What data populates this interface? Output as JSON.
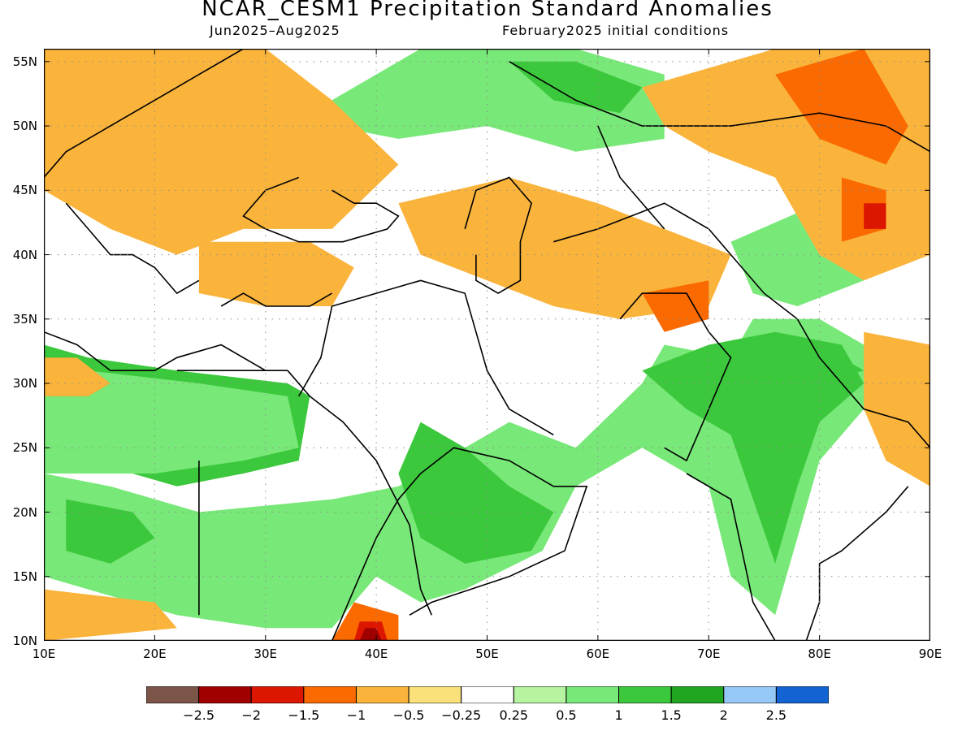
{
  "title": "NCAR_CESM1 Precipitation Standard Anomalies",
  "subtitle_left": "Jun2025–Aug2025",
  "subtitle_right": "February2025 initial conditions",
  "lat_labels": [
    "55N",
    "50N",
    "45N",
    "40N",
    "35N",
    "30N",
    "25N",
    "20N",
    "15N",
    "10N"
  ],
  "lon_labels": [
    "10E",
    "20E",
    "30E",
    "40E",
    "50E",
    "60E",
    "70E",
    "80E",
    "90E"
  ],
  "map": {
    "lon_range": [
      10,
      90
    ],
    "lat_range": [
      10,
      56
    ],
    "grid_lon": [
      20,
      30,
      40,
      50,
      60,
      70,
      80
    ],
    "grid_lat": [
      15,
      20,
      25,
      30,
      35,
      40,
      45,
      50,
      55
    ],
    "anomaly_regions": [
      {
        "level": 1,
        "points": [
          [
            10,
            33
          ],
          [
            14,
            32
          ],
          [
            22,
            31
          ],
          [
            32,
            30
          ],
          [
            34,
            29
          ],
          [
            33,
            24
          ],
          [
            28,
            23
          ],
          [
            22,
            22
          ],
          [
            18,
            23
          ],
          [
            10,
            24
          ]
        ]
      },
      {
        "level": 0.5,
        "points": [
          [
            10,
            32
          ],
          [
            14,
            31
          ],
          [
            24,
            30
          ],
          [
            32,
            29
          ],
          [
            33,
            25
          ],
          [
            28,
            24
          ],
          [
            20,
            23
          ],
          [
            10,
            23
          ]
        ]
      },
      {
        "level": 1.5,
        "points": [
          [
            10,
            32
          ],
          [
            13,
            32
          ],
          [
            16,
            30
          ],
          [
            14,
            29
          ],
          [
            10,
            29
          ]
        ]
      },
      {
        "level": -0.5,
        "points": [
          [
            10,
            32
          ],
          [
            13,
            32
          ],
          [
            16,
            30
          ],
          [
            14,
            29
          ],
          [
            10,
            29
          ]
        ]
      },
      {
        "level": 0.5,
        "points": [
          [
            10,
            23
          ],
          [
            16,
            22
          ],
          [
            24,
            20
          ],
          [
            36,
            21
          ],
          [
            42,
            22
          ],
          [
            52,
            27
          ],
          [
            58,
            25
          ],
          [
            64,
            30
          ],
          [
            66,
            33
          ],
          [
            72,
            32
          ],
          [
            74,
            35
          ],
          [
            80,
            35
          ],
          [
            86,
            32
          ],
          [
            84,
            28
          ],
          [
            80,
            24
          ],
          [
            78,
            18
          ],
          [
            76,
            12
          ],
          [
            72,
            15
          ],
          [
            70,
            22
          ],
          [
            64,
            25
          ],
          [
            58,
            22
          ],
          [
            55,
            17
          ],
          [
            48,
            14
          ],
          [
            44,
            13
          ],
          [
            40,
            15
          ],
          [
            36,
            11
          ],
          [
            30,
            11
          ],
          [
            22,
            12
          ],
          [
            14,
            14
          ],
          [
            10,
            15
          ]
        ]
      },
      {
        "level": 1,
        "points": [
          [
            44,
            27
          ],
          [
            48,
            25
          ],
          [
            52,
            22
          ],
          [
            56,
            20
          ],
          [
            54,
            17
          ],
          [
            48,
            16
          ],
          [
            44,
            18
          ],
          [
            42,
            23
          ]
        ]
      },
      {
        "level": 1,
        "points": [
          [
            64,
            31
          ],
          [
            70,
            33
          ],
          [
            76,
            34
          ],
          [
            82,
            33
          ],
          [
            84,
            30
          ],
          [
            80,
            27
          ],
          [
            78,
            22
          ],
          [
            76,
            16
          ],
          [
            74,
            21
          ],
          [
            72,
            26
          ],
          [
            68,
            28
          ]
        ]
      },
      {
        "level": 1,
        "points": [
          [
            12,
            21
          ],
          [
            18,
            20
          ],
          [
            20,
            18
          ],
          [
            16,
            16
          ],
          [
            12,
            17
          ]
        ]
      },
      {
        "level": 1,
        "points": [
          [
            78,
            33
          ],
          [
            82,
            32
          ],
          [
            84,
            31
          ],
          [
            80,
            30
          ],
          [
            78,
            31
          ]
        ]
      },
      {
        "level": 0.5,
        "points": [
          [
            36,
            52
          ],
          [
            44,
            56
          ],
          [
            58,
            56
          ],
          [
            66,
            54
          ],
          [
            66,
            49
          ],
          [
            58,
            48
          ],
          [
            50,
            50
          ],
          [
            42,
            49
          ],
          [
            36,
            50
          ]
        ]
      },
      {
        "level": 1,
        "points": [
          [
            52,
            55
          ],
          [
            58,
            55
          ],
          [
            64,
            53
          ],
          [
            62,
            51
          ],
          [
            56,
            52
          ]
        ]
      },
      {
        "level": 0.5,
        "points": [
          [
            72,
            41
          ],
          [
            80,
            44
          ],
          [
            86,
            43
          ],
          [
            84,
            38
          ],
          [
            78,
            36
          ],
          [
            74,
            37
          ]
        ]
      },
      {
        "level": -0.5,
        "points": [
          [
            10,
            56
          ],
          [
            20,
            56
          ],
          [
            30,
            56
          ],
          [
            36,
            52
          ],
          [
            42,
            47
          ],
          [
            36,
            42
          ],
          [
            28,
            42
          ],
          [
            22,
            40
          ],
          [
            16,
            42
          ],
          [
            10,
            45
          ]
        ]
      },
      {
        "level": -0.5,
        "points": [
          [
            24,
            41
          ],
          [
            34,
            41
          ],
          [
            38,
            39
          ],
          [
            36,
            36
          ],
          [
            30,
            36
          ],
          [
            24,
            37
          ]
        ]
      },
      {
        "level": -0.5,
        "points": [
          [
            42,
            44
          ],
          [
            52,
            46
          ],
          [
            60,
            44
          ],
          [
            66,
            42
          ],
          [
            72,
            40
          ],
          [
            70,
            36
          ],
          [
            62,
            35
          ],
          [
            56,
            36
          ],
          [
            50,
            38
          ],
          [
            44,
            40
          ]
        ]
      },
      {
        "level": -0.5,
        "points": [
          [
            64,
            53
          ],
          [
            76,
            56
          ],
          [
            90,
            56
          ],
          [
            90,
            40
          ],
          [
            84,
            38
          ],
          [
            80,
            40
          ],
          [
            76,
            46
          ],
          [
            70,
            48
          ],
          [
            66,
            50
          ]
        ]
      },
      {
        "level": -1,
        "points": [
          [
            76,
            54
          ],
          [
            84,
            56
          ],
          [
            88,
            50
          ],
          [
            86,
            47
          ],
          [
            80,
            49
          ]
        ]
      },
      {
        "level": -1,
        "points": [
          [
            82,
            46
          ],
          [
            86,
            45
          ],
          [
            86,
            42
          ],
          [
            82,
            41
          ]
        ]
      },
      {
        "level": -1.5,
        "points": [
          [
            84,
            44
          ],
          [
            86,
            44
          ],
          [
            86,
            42
          ],
          [
            84,
            42
          ]
        ]
      },
      {
        "level": -1,
        "points": [
          [
            64,
            37
          ],
          [
            70,
            38
          ],
          [
            70,
            35
          ],
          [
            66,
            34
          ]
        ]
      },
      {
        "level": -1,
        "points": [
          [
            38,
            13
          ],
          [
            42,
            12
          ],
          [
            42,
            10
          ],
          [
            36,
            10
          ]
        ]
      },
      {
        "level": -1.5,
        "points": [
          [
            38.5,
            11.5
          ],
          [
            40.5,
            11.5
          ],
          [
            41,
            10
          ],
          [
            38,
            10
          ]
        ]
      },
      {
        "level": -2,
        "points": [
          [
            39,
            11
          ],
          [
            40,
            11
          ],
          [
            40.5,
            10
          ],
          [
            38.5,
            10
          ]
        ]
      },
      {
        "level": -0.5,
        "points": [
          [
            10,
            14
          ],
          [
            20,
            13
          ],
          [
            22,
            11
          ],
          [
            10,
            10
          ]
        ]
      },
      {
        "level": -0.5,
        "points": [
          [
            84,
            34
          ],
          [
            90,
            33
          ],
          [
            90,
            22
          ],
          [
            86,
            24
          ],
          [
            84,
            28
          ]
        ]
      }
    ],
    "boundaries": [
      [
        [
          36,
          10
        ],
        [
          38,
          14
        ],
        [
          40,
          18
        ],
        [
          42,
          21
        ],
        [
          44,
          23
        ],
        [
          47,
          25
        ],
        [
          52,
          24
        ],
        [
          56,
          22
        ],
        [
          59,
          22
        ],
        [
          57,
          17
        ],
        [
          52,
          15
        ],
        [
          45,
          13
        ],
        [
          43,
          12
        ]
      ],
      [
        [
          32,
          31
        ],
        [
          34,
          29
        ],
        [
          37,
          27
        ],
        [
          40,
          24
        ],
        [
          43,
          19
        ],
        [
          44,
          14
        ],
        [
          45,
          12
        ]
      ],
      [
        [
          33,
          29
        ],
        [
          35,
          32
        ],
        [
          36,
          36
        ],
        [
          40,
          37
        ],
        [
          44,
          38
        ],
        [
          48,
          37
        ],
        [
          50,
          31
        ],
        [
          52,
          28
        ],
        [
          56,
          26
        ]
      ],
      [
        [
          22,
          31
        ],
        [
          28,
          31
        ],
        [
          32,
          31
        ]
      ],
      [
        [
          10,
          34
        ],
        [
          13,
          33
        ],
        [
          16,
          31
        ],
        [
          20,
          31
        ],
        [
          22,
          32
        ],
        [
          26,
          33
        ],
        [
          30,
          31
        ]
      ],
      [
        [
          24,
          24
        ],
        [
          24,
          20
        ],
        [
          24,
          16
        ],
        [
          24,
          12
        ]
      ],
      [
        [
          36,
          45
        ],
        [
          38,
          44
        ],
        [
          40,
          44
        ],
        [
          42,
          43
        ],
        [
          41,
          42
        ],
        [
          37,
          41
        ],
        [
          33,
          41
        ],
        [
          30,
          42
        ],
        [
          28,
          43
        ],
        [
          30,
          45
        ],
        [
          33,
          46
        ]
      ],
      [
        [
          26,
          36
        ],
        [
          28,
          37
        ],
        [
          30,
          36
        ],
        [
          34,
          36
        ],
        [
          36,
          37
        ]
      ],
      [
        [
          48,
          42
        ],
        [
          49,
          45
        ],
        [
          52,
          46
        ],
        [
          54,
          44
        ],
        [
          53,
          41
        ],
        [
          53,
          38
        ],
        [
          51,
          37
        ],
        [
          49,
          38
        ],
        [
          49,
          40
        ]
      ],
      [
        [
          56,
          41
        ],
        [
          60,
          42
        ],
        [
          66,
          44
        ],
        [
          70,
          42
        ],
        [
          72,
          40
        ],
        [
          75,
          37
        ],
        [
          78,
          35
        ],
        [
          80,
          32
        ],
        [
          84,
          28
        ],
        [
          88,
          27
        ],
        [
          90,
          25
        ]
      ],
      [
        [
          62,
          35
        ],
        [
          64,
          37
        ],
        [
          68,
          37
        ],
        [
          70,
          34
        ],
        [
          72,
          32
        ],
        [
          70,
          28
        ],
        [
          68,
          24
        ],
        [
          66,
          25
        ]
      ],
      [
        [
          68,
          23
        ],
        [
          72,
          21
        ],
        [
          73,
          17
        ],
        [
          74,
          13
        ],
        [
          76,
          10
        ],
        [
          78,
          8
        ],
        [
          80,
          13
        ],
        [
          80,
          16
        ],
        [
          82,
          17
        ],
        [
          86,
          20
        ],
        [
          88,
          22
        ]
      ],
      [
        [
          10,
          46
        ],
        [
          12,
          48
        ],
        [
          16,
          50
        ],
        [
          20,
          52
        ],
        [
          24,
          54
        ],
        [
          28,
          56
        ]
      ],
      [
        [
          12,
          44
        ],
        [
          14,
          42
        ],
        [
          16,
          40
        ],
        [
          18,
          40
        ],
        [
          20,
          39
        ],
        [
          22,
          37
        ],
        [
          24,
          38
        ]
      ],
      [
        [
          52,
          55
        ],
        [
          58,
          52
        ],
        [
          64,
          50
        ],
        [
          72,
          50
        ],
        [
          80,
          51
        ],
        [
          86,
          50
        ],
        [
          90,
          48
        ]
      ],
      [
        [
          60,
          50
        ],
        [
          62,
          46
        ],
        [
          66,
          42
        ]
      ]
    ],
    "colors": {
      "-2.5": "#7a5548",
      "-2": "#a00000",
      "-1.5": "#dd1600",
      "-1": "#fa6a00",
      "-0.5": "#fab43c",
      "-0.25": "#fae17a",
      "0": "#ffffff",
      "0.25": "#b6f4a2",
      "0.5": "#78e878",
      "1": "#3cc83c",
      "1.5": "#1fa51f",
      "2": "#96c8f5",
      "2.5": "#1463d2"
    }
  },
  "colorbar": {
    "colors": [
      "#7a5548",
      "#a00000",
      "#dd1600",
      "#fa6a00",
      "#fab43c",
      "#fae17a",
      "#ffffff",
      "#b6f4a2",
      "#78e878",
      "#3cc83c",
      "#1fa51f",
      "#96c8f5",
      "#1463d2"
    ],
    "labels": [
      "−2.5",
      "−2",
      "−1.5",
      "−1",
      "−0.5",
      "−0.25",
      "0.25",
      "0.5",
      "1",
      "1.5",
      "2",
      "2.5"
    ]
  }
}
